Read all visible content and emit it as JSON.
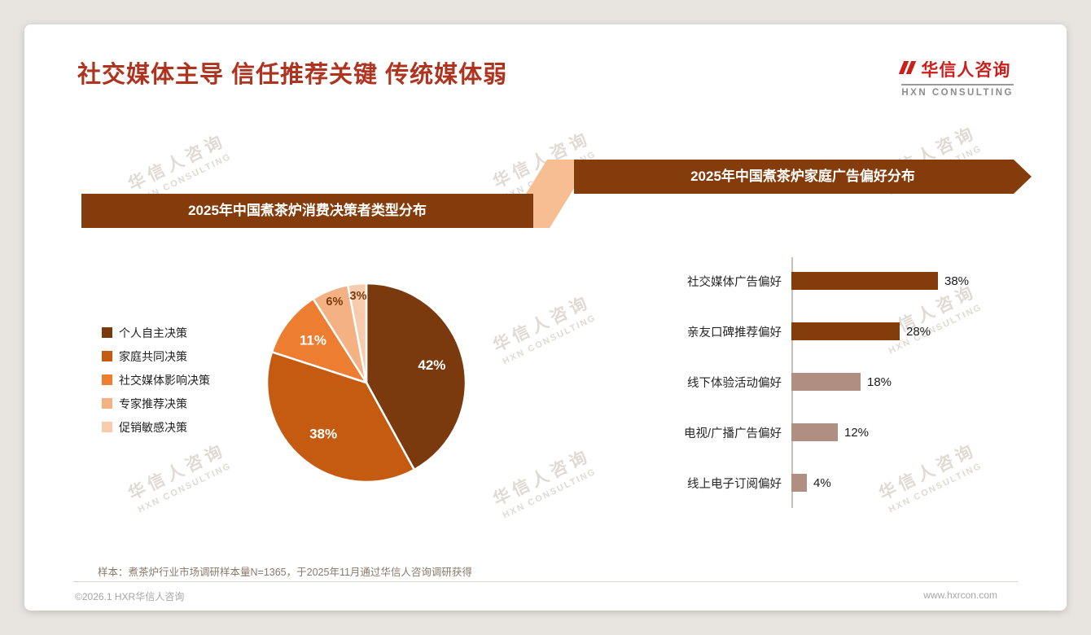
{
  "page": {
    "title": "社交媒体主导 信任推荐关键 传统媒体弱",
    "logo": {
      "name": "华信人咨询",
      "subtitle": "HXN CONSULTING"
    },
    "watermark": {
      "line1": "华信人咨询",
      "line2": "HXN CONSULTING"
    },
    "footnote": "样本：煮茶炉行业市场调研样本量N=1365，于2025年11月通过华信人咨询调研获得",
    "copyright": "©2026.1 HXR华信人咨询",
    "website": "www.hxrcon.com"
  },
  "colors": {
    "title_text": "#AE3420",
    "banner_bg": "#843C0C",
    "connector_bg": "#F6BE92",
    "logo_red": "#CC1F1A",
    "logo_gray": "#8C8C8C",
    "axis_line": "#C8C0B8",
    "footnote_text": "#8A7A6A",
    "pie_label_dark": "#7B3A0E",
    "pie_colors": [
      "#7B3A0E",
      "#C55A11",
      "#ED7D31",
      "#F4B183",
      "#F8CBAD"
    ]
  },
  "chart_data": [
    {
      "type": "pie",
      "title": "2025年中国煮茶炉消费决策者类型分布",
      "categories": [
        "个人自主决策",
        "家庭共同决策",
        "社交媒体影响决策",
        "专家推荐决策",
        "促销敏感决策"
      ],
      "values": [
        42,
        38,
        11,
        6,
        3
      ],
      "unit": "%",
      "labels_shown": [
        "42%",
        "38%",
        "11%",
        "6%",
        "3%"
      ],
      "colors": [
        "#7B3A0E",
        "#C55A11",
        "#ED7D31",
        "#F4B183",
        "#F8CBAD"
      ],
      "start_angle_deg": 0,
      "direction": "clockwise",
      "legend_position": "left"
    },
    {
      "type": "bar",
      "orientation": "horizontal",
      "title": "2025年中国煮茶炉家庭广告偏好分布",
      "categories": [
        "社交媒体广告偏好",
        "亲友口碑推荐偏好",
        "线下体验活动偏好",
        "电视/广播广告偏好",
        "线上电子订阅偏好"
      ],
      "values": [
        38,
        28,
        18,
        12,
        4
      ],
      "unit": "%",
      "value_labels": [
        "38%",
        "28%",
        "18%",
        "12%",
        "4%"
      ],
      "colors": [
        "#843C0C",
        "#843C0C",
        "#B18E82",
        "#B18E82",
        "#B18E82"
      ],
      "xlim": [
        0,
        40
      ],
      "grid": false,
      "legend_position": "none"
    }
  ]
}
